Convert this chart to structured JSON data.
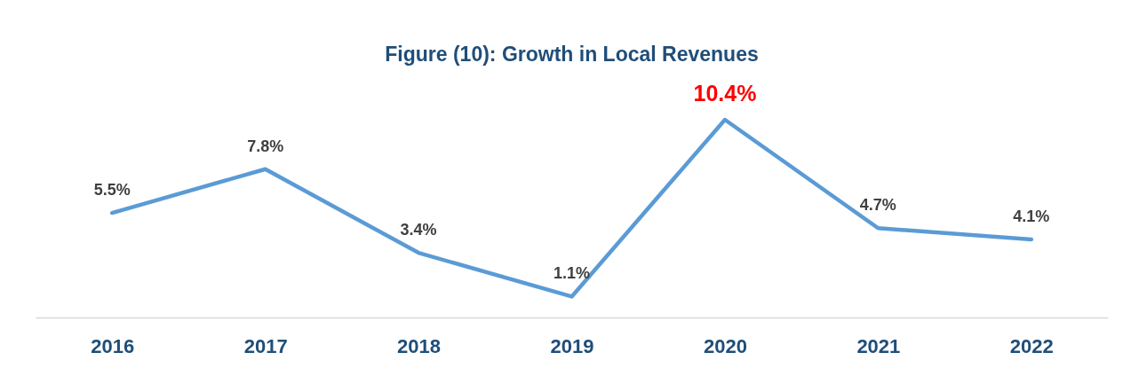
{
  "chart_data": {
    "type": "line",
    "title": "Figure (10): Growth in Local Revenues",
    "categories": [
      "2016",
      "2017",
      "2018",
      "2019",
      "2020",
      "2021",
      "2022"
    ],
    "series": [
      {
        "color": "#5b9bd5",
        "values": [
          5.5,
          7.8,
          3.4,
          1.1,
          10.4,
          4.7,
          4.1
        ],
        "value_labels": [
          "5.5%",
          "7.8%",
          "3.4%",
          "1.1%",
          "10.4%",
          "4.7%",
          "4.1%"
        ]
      }
    ],
    "grid": false,
    "marker": "none",
    "line_style": "solid",
    "tick_labels": "x"
  }
}
